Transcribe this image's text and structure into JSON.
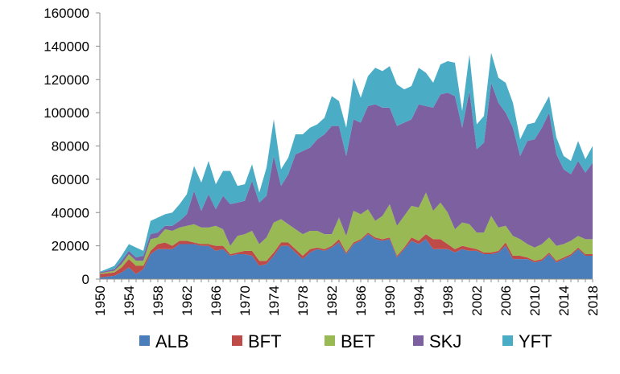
{
  "chart_data": {
    "type": "area",
    "stacked": true,
    "title": "",
    "xlabel": "",
    "ylabel": "",
    "ylim": [
      0,
      160000
    ],
    "yticks": [
      0,
      20000,
      40000,
      60000,
      80000,
      100000,
      120000,
      140000,
      160000
    ],
    "ytick_labels": [
      "0",
      "20000",
      "40000",
      "60000",
      "80000",
      "100000",
      "120000",
      "140000",
      "160000"
    ],
    "xlim": [
      1950,
      2018
    ],
    "xticks": [
      1950,
      1954,
      1958,
      1962,
      1966,
      1970,
      1974,
      1978,
      1982,
      1986,
      1990,
      1994,
      1998,
      2002,
      2006,
      2010,
      2014,
      2018
    ],
    "xtick_labels": [
      "1950",
      "1954",
      "1958",
      "1962",
      "1966",
      "1970",
      "1974",
      "1978",
      "1982",
      "1986",
      "1990",
      "1994",
      "1998",
      "2002",
      "2006",
      "2010",
      "2014",
      "2018"
    ],
    "grid": false,
    "legend_position": "bottom",
    "x": [
      1950,
      1951,
      1952,
      1953,
      1954,
      1955,
      1956,
      1957,
      1958,
      1959,
      1960,
      1961,
      1962,
      1963,
      1964,
      1965,
      1966,
      1967,
      1968,
      1969,
      1970,
      1971,
      1972,
      1973,
      1974,
      1975,
      1976,
      1977,
      1978,
      1979,
      1980,
      1981,
      1982,
      1983,
      1984,
      1985,
      1986,
      1987,
      1988,
      1989,
      1990,
      1991,
      1992,
      1993,
      1994,
      1995,
      1996,
      1997,
      1998,
      1999,
      2000,
      2001,
      2002,
      2003,
      2004,
      2005,
      2006,
      2007,
      2008,
      2009,
      2010,
      2011,
      2012,
      2013,
      2014,
      2015,
      2016,
      2017,
      2018
    ],
    "series": [
      {
        "name": "ALB",
        "color": "#4a7ebb",
        "values": [
          1000,
          1500,
          2000,
          4000,
          7000,
          3000,
          6000,
          15000,
          18000,
          18000,
          18000,
          21000,
          21000,
          21000,
          20000,
          20000,
          17000,
          18000,
          14000,
          15000,
          15000,
          14000,
          8000,
          9000,
          14000,
          20000,
          20000,
          16000,
          12000,
          16000,
          18000,
          17000,
          19000,
          22000,
          15000,
          21000,
          23000,
          27000,
          24000,
          23000,
          24000,
          13000,
          18000,
          23000,
          21000,
          24000,
          18000,
          18000,
          18000,
          16000,
          18000,
          17000,
          17000,
          15000,
          15000,
          16000,
          20000,
          12000,
          12000,
          12000,
          10000,
          11000,
          15000,
          10000,
          12000,
          14000,
          18000,
          14000,
          14000
        ]
      },
      {
        "name": "BFT",
        "color": "#be4b48",
        "values": [
          2000,
          2000,
          2000,
          3000,
          5000,
          5000,
          2000,
          2000,
          3000,
          4000,
          2000,
          2000,
          2000,
          1000,
          1000,
          1000,
          3000,
          2000,
          1000,
          1000,
          2000,
          3000,
          3000,
          2000,
          2000,
          2000,
          2000,
          2000,
          2000,
          2000,
          1000,
          1000,
          1000,
          2000,
          1000,
          1000,
          1000,
          1000,
          1000,
          1000,
          1000,
          1000,
          1000,
          2000,
          2000,
          3000,
          6000,
          6000,
          3000,
          2000,
          2000,
          2000,
          1000,
          1000,
          1000,
          1000,
          2000,
          2000,
          2000,
          1000,
          1000,
          1000,
          1000,
          1000,
          1000,
          1000,
          1000,
          1000,
          1000
        ]
      },
      {
        "name": "BET",
        "color": "#98b954",
        "values": [
          500,
          800,
          1000,
          2000,
          3000,
          3000,
          3000,
          7000,
          4000,
          8000,
          9000,
          8000,
          9000,
          11000,
          10000,
          10000,
          12000,
          10000,
          5000,
          10000,
          10000,
          12000,
          10000,
          14000,
          18000,
          14000,
          11000,
          12000,
          13000,
          11000,
          10000,
          9000,
          7000,
          13000,
          10000,
          19000,
          15000,
          14000,
          10000,
          14000,
          20000,
          18000,
          19000,
          19000,
          20000,
          25000,
          17000,
          22000,
          19000,
          12000,
          14000,
          14000,
          10000,
          12000,
          22000,
          14000,
          10000,
          12000,
          10000,
          8000,
          8000,
          9000,
          9000,
          9000,
          8000,
          8000,
          7000,
          9000,
          9000
        ]
      },
      {
        "name": "SKJ",
        "color": "#7d60a0",
        "values": [
          500,
          800,
          1000,
          2000,
          2000,
          2000,
          3000,
          3000,
          3000,
          2000,
          3000,
          4000,
          7000,
          20000,
          10000,
          20000,
          10000,
          20000,
          25000,
          20000,
          20000,
          30000,
          25000,
          25000,
          40000,
          20000,
          30000,
          45000,
          50000,
          50000,
          55000,
          60000,
          65000,
          55000,
          48000,
          55000,
          55000,
          62000,
          70000,
          65000,
          58000,
          60000,
          56000,
          52000,
          62000,
          52000,
          62000,
          65000,
          72000,
          80000,
          57000,
          80000,
          50000,
          54000,
          80000,
          75000,
          68000,
          65000,
          50000,
          62000,
          65000,
          70000,
          75000,
          55000,
          45000,
          40000,
          45000,
          40000,
          46000
        ]
      },
      {
        "name": "YFT",
        "color": "#4bacc6",
        "values": [
          500,
          1000,
          2000,
          3000,
          4000,
          6000,
          3000,
          8000,
          9000,
          7000,
          8000,
          10000,
          12000,
          15000,
          17000,
          20000,
          15000,
          15000,
          20000,
          10000,
          10000,
          10000,
          6000,
          17000,
          22000,
          10000,
          10000,
          12000,
          10000,
          12000,
          9000,
          10000,
          18000,
          15000,
          17000,
          25000,
          15000,
          18000,
          22000,
          22000,
          25000,
          25000,
          20000,
          20000,
          22000,
          20000,
          15000,
          18000,
          19000,
          20000,
          10000,
          22000,
          15000,
          16000,
          18000,
          15000,
          18000,
          15000,
          10000,
          10000,
          10000,
          11000,
          10000,
          10000,
          8000,
          8000,
          12000,
          8000,
          10000
        ]
      }
    ]
  }
}
